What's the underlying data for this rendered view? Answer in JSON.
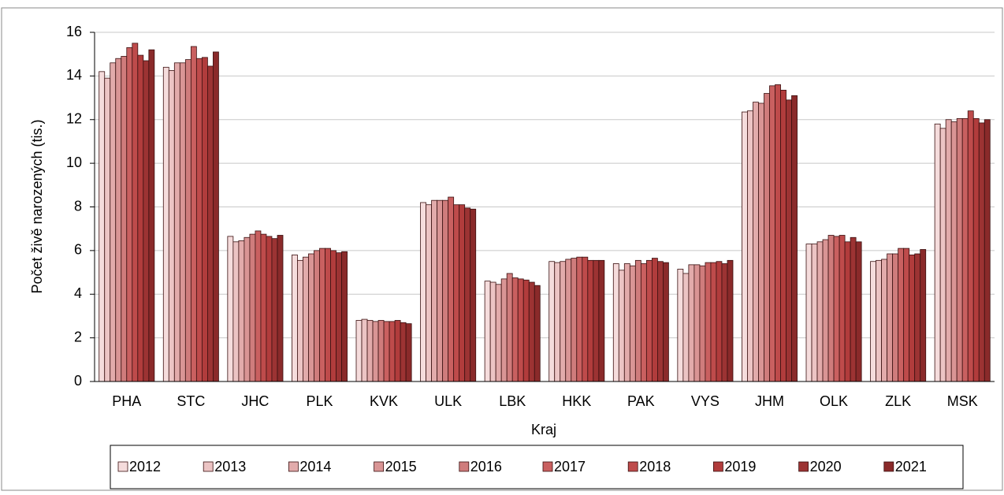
{
  "chart_data": {
    "type": "bar",
    "xlabel": "Kraj",
    "ylabel": "Počet živě narozených (tis.)",
    "categories": [
      "PHA",
      "STC",
      "JHC",
      "PLK",
      "KVK",
      "ULK",
      "LBK",
      "HKK",
      "PAK",
      "VYS",
      "JHM",
      "OLK",
      "ZLK",
      "MSK"
    ],
    "series": [
      {
        "name": "2012",
        "color": "#f5dcdc",
        "values": [
          14.2,
          14.4,
          6.65,
          5.8,
          2.8,
          8.2,
          4.6,
          5.5,
          5.4,
          5.15,
          12.35,
          6.3,
          5.5,
          11.8
        ]
      },
      {
        "name": "2013",
        "color": "#ecc4c4",
        "values": [
          13.9,
          14.25,
          6.4,
          5.55,
          2.85,
          8.1,
          4.55,
          5.45,
          5.1,
          4.95,
          12.4,
          6.3,
          5.55,
          11.6
        ]
      },
      {
        "name": "2014",
        "color": "#e2abab",
        "values": [
          14.6,
          14.6,
          6.45,
          5.7,
          2.8,
          8.3,
          4.45,
          5.5,
          5.4,
          5.35,
          12.8,
          6.4,
          5.6,
          12.0
        ]
      },
      {
        "name": "2015",
        "color": "#d99595",
        "values": [
          14.8,
          14.6,
          6.6,
          5.85,
          2.75,
          8.3,
          4.7,
          5.6,
          5.3,
          5.35,
          12.75,
          6.5,
          5.85,
          11.9
        ]
      },
      {
        "name": "2016",
        "color": "#cf7c7c",
        "values": [
          14.9,
          14.75,
          6.75,
          6.0,
          2.8,
          8.3,
          4.95,
          5.65,
          5.55,
          5.3,
          13.2,
          6.7,
          5.85,
          12.05
        ]
      },
      {
        "name": "2017",
        "color": "#c96060",
        "values": [
          15.3,
          15.35,
          6.9,
          6.1,
          2.75,
          8.45,
          4.75,
          5.7,
          5.4,
          5.45,
          13.55,
          6.65,
          6.1,
          12.05
        ]
      },
      {
        "name": "2018",
        "color": "#be4b4b",
        "values": [
          15.5,
          14.8,
          6.75,
          6.1,
          2.75,
          8.1,
          4.7,
          5.7,
          5.55,
          5.45,
          13.6,
          6.7,
          6.1,
          12.4
        ]
      },
      {
        "name": "2019",
        "color": "#b13c3c",
        "values": [
          14.95,
          14.85,
          6.65,
          6.0,
          2.8,
          8.1,
          4.65,
          5.55,
          5.65,
          5.5,
          13.35,
          6.4,
          5.8,
          12.05
        ]
      },
      {
        "name": "2020",
        "color": "#9c3333",
        "values": [
          14.7,
          14.45,
          6.55,
          5.9,
          2.7,
          7.95,
          4.55,
          5.55,
          5.5,
          5.4,
          12.9,
          6.6,
          5.85,
          11.85
        ]
      },
      {
        "name": "2021",
        "color": "#8a2a2a",
        "values": [
          15.2,
          15.1,
          6.7,
          5.95,
          2.65,
          7.9,
          4.4,
          5.55,
          5.45,
          5.55,
          13.1,
          6.4,
          6.05,
          12.0
        ]
      }
    ],
    "ylim": [
      0,
      16
    ],
    "yticks": [
      0,
      2,
      4,
      6,
      8,
      10,
      12,
      14,
      16
    ],
    "grid": true,
    "legend": "bottom"
  }
}
